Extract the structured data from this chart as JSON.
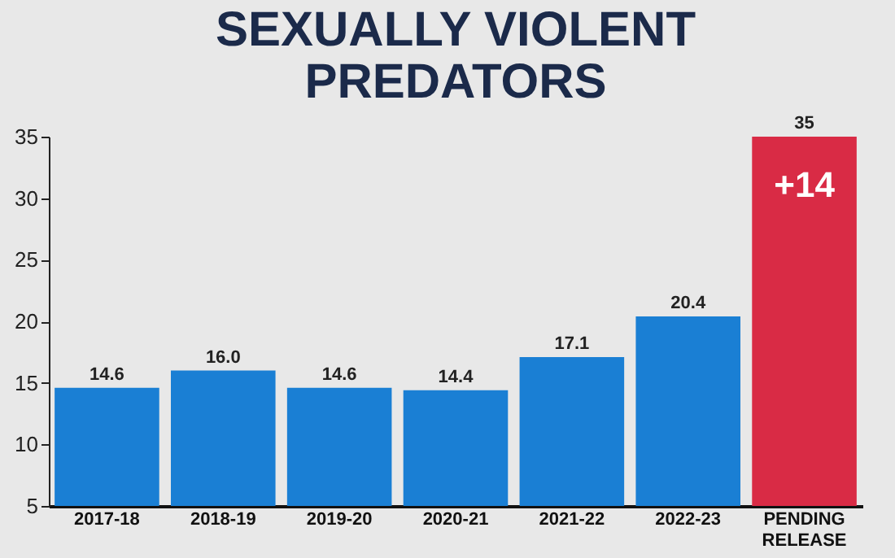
{
  "chart_data": {
    "type": "bar",
    "title": "SEXUALLY VIOLENT PREDATORS",
    "categories": [
      "2017-18",
      "2018-19",
      "2019-20",
      "2020-21",
      "2021-22",
      "2022-23",
      "PENDING RELEASE"
    ],
    "values": [
      14.6,
      16.0,
      14.6,
      14.4,
      17.1,
      20.4,
      35
    ],
    "colors": [
      "#1a7fd4",
      "#1a7fd4",
      "#1a7fd4",
      "#1a7fd4",
      "#1a7fd4",
      "#1a7fd4",
      "#d92b45"
    ],
    "value_labels": [
      "14.6",
      "16.0",
      "14.6",
      "14.4",
      "17.1",
      "20.4",
      "35"
    ],
    "annotations": [
      "+14"
    ],
    "ylim": [
      5,
      35
    ],
    "yticks": [
      5,
      10,
      15,
      20,
      25,
      30,
      35
    ],
    "grid": false
  }
}
